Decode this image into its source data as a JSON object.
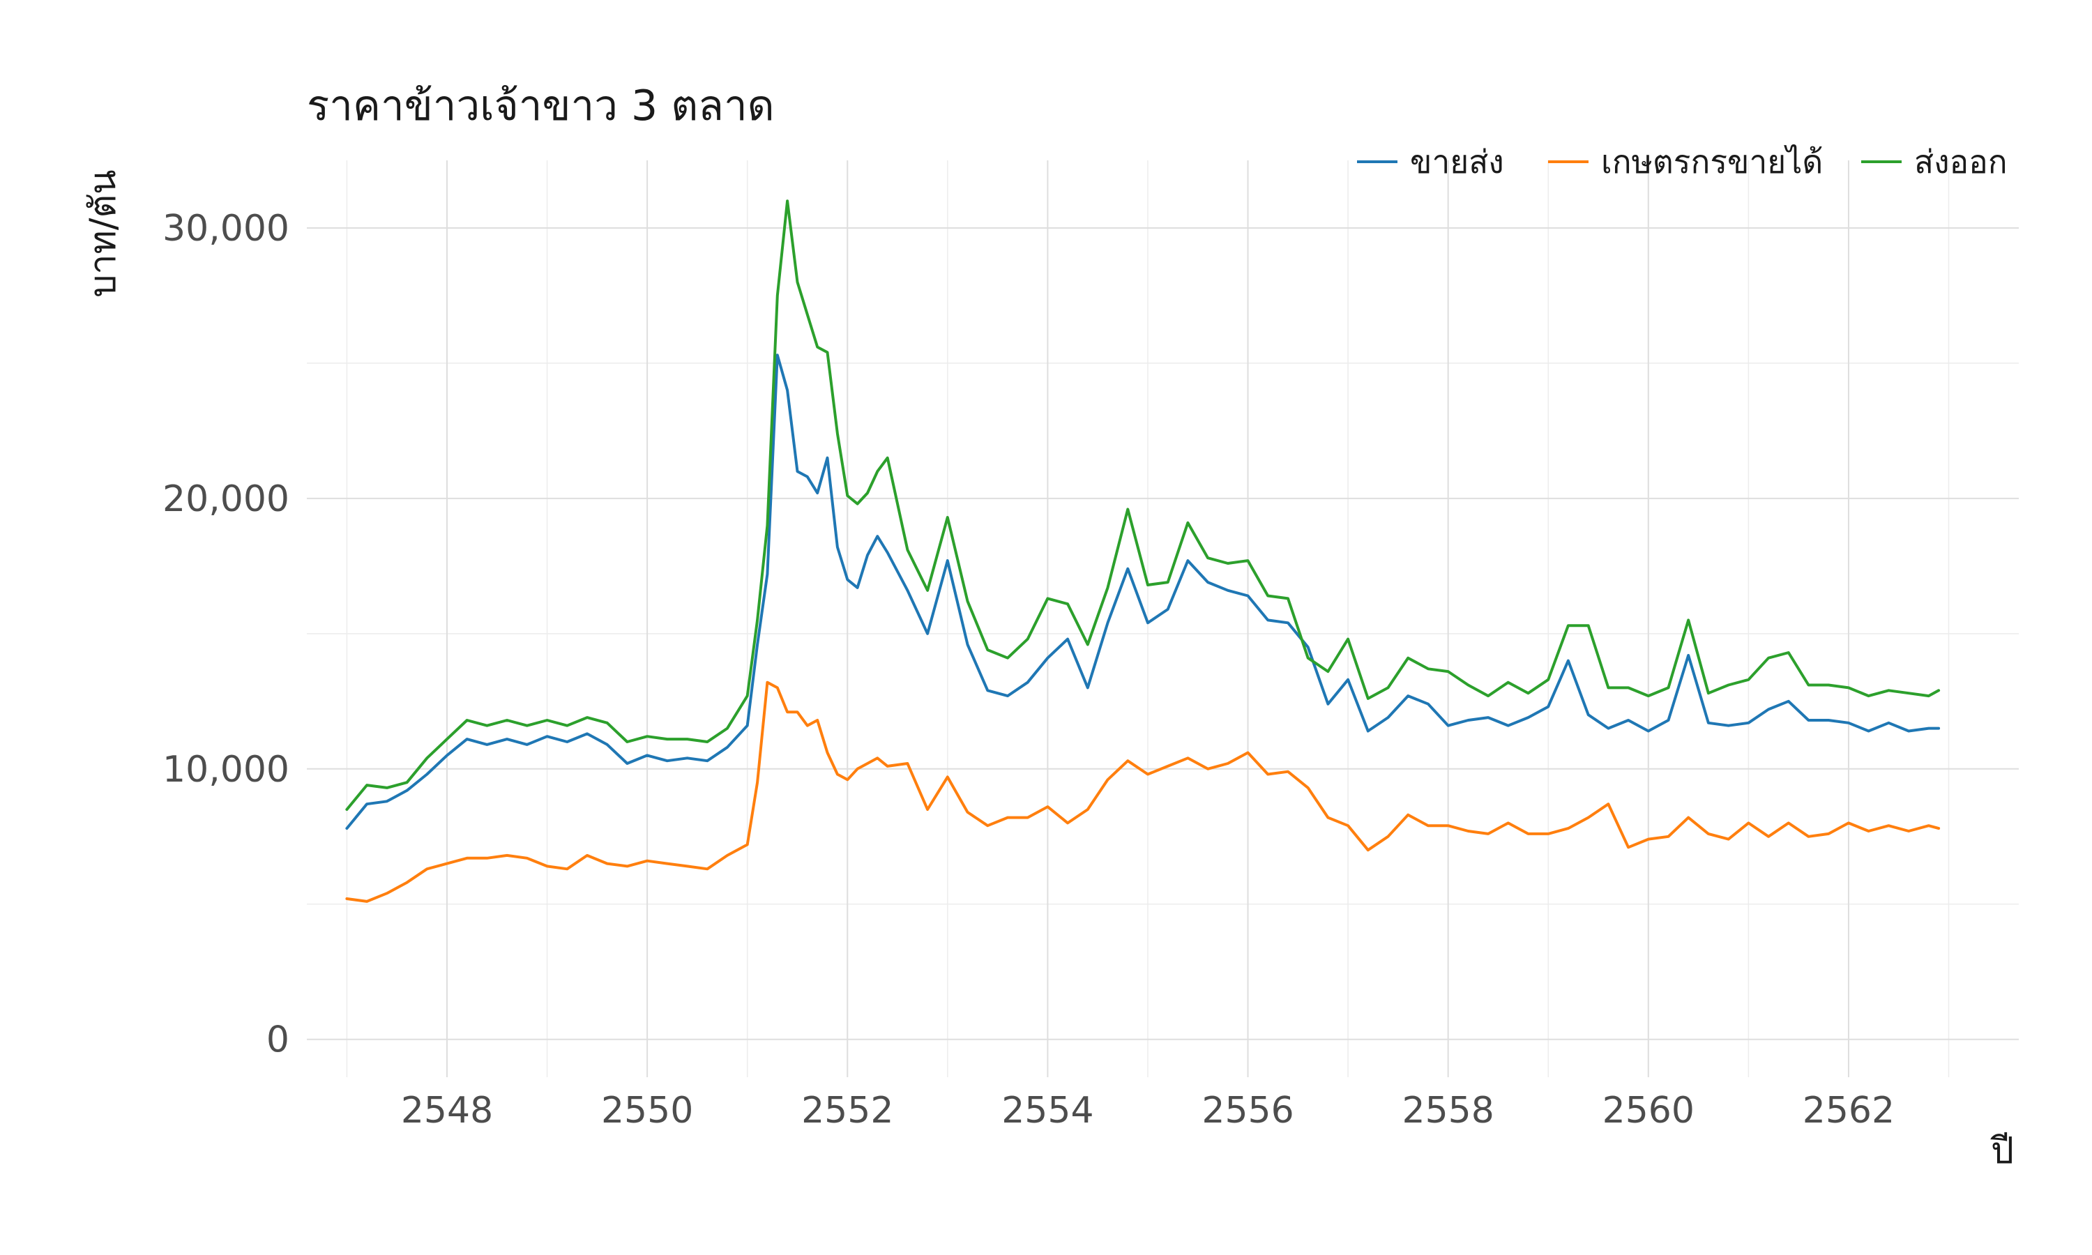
{
  "chart_data": {
    "type": "line",
    "title": "ราคาข้าวเจ้าขาว 3 ตลาด",
    "xlabel": "ปี",
    "ylabel": "บาท/ตัน",
    "xlim": [
      2546.6,
      2563.7
    ],
    "ylim": [
      -1400,
      32500
    ],
    "x_ticks": [
      2548,
      2550,
      2552,
      2554,
      2556,
      2558,
      2560,
      2562
    ],
    "x_tick_labels": [
      "2548",
      "2550",
      "2552",
      "2554",
      "2556",
      "2558",
      "2560",
      "2562"
    ],
    "y_ticks": [
      0,
      10000,
      20000,
      30000
    ],
    "y_tick_labels": [
      "0",
      "10,000",
      "20,000",
      "30,000"
    ],
    "grid": true,
    "legend_position": "top-right",
    "series": [
      {
        "name": "ขายส่ง",
        "color": "#1f77b4",
        "x": [
          2547.0,
          2547.2,
          2547.4,
          2547.6,
          2547.8,
          2548.0,
          2548.2,
          2548.4,
          2548.6,
          2548.8,
          2549.0,
          2549.2,
          2549.4,
          2549.6,
          2549.8,
          2550.0,
          2550.2,
          2550.4,
          2550.6,
          2550.8,
          2551.0,
          2551.1,
          2551.2,
          2551.3,
          2551.4,
          2551.5,
          2551.6,
          2551.7,
          2551.8,
          2551.9,
          2552.0,
          2552.1,
          2552.2,
          2552.3,
          2552.4,
          2552.6,
          2552.8,
          2553.0,
          2553.2,
          2553.4,
          2553.6,
          2553.8,
          2554.0,
          2554.2,
          2554.4,
          2554.6,
          2554.8,
          2555.0,
          2555.2,
          2555.4,
          2555.6,
          2555.8,
          2556.0,
          2556.2,
          2556.4,
          2556.6,
          2556.8,
          2557.0,
          2557.2,
          2557.4,
          2557.6,
          2557.8,
          2558.0,
          2558.2,
          2558.4,
          2558.6,
          2558.8,
          2559.0,
          2559.2,
          2559.4,
          2559.6,
          2559.8,
          2560.0,
          2560.2,
          2560.4,
          2560.6,
          2560.8,
          2561.0,
          2561.2,
          2561.4,
          2561.6,
          2561.8,
          2562.0,
          2562.2,
          2562.4,
          2562.6,
          2562.8,
          2562.9
        ],
        "values": [
          7800,
          8700,
          8800,
          9200,
          9800,
          10500,
          11100,
          10900,
          11100,
          10900,
          11200,
          11000,
          11300,
          10900,
          10200,
          10500,
          10300,
          10400,
          10300,
          10800,
          11600,
          14600,
          17200,
          25300,
          24000,
          21000,
          20800,
          20200,
          21500,
          18200,
          17000,
          16700,
          17900,
          18600,
          18000,
          16600,
          15000,
          17700,
          14600,
          12900,
          12700,
          13200,
          14100,
          14800,
          13000,
          15400,
          17400,
          15400,
          15900,
          17700,
          16900,
          16600,
          16400,
          15500,
          15400,
          14500,
          12400,
          13300,
          11400,
          11900,
          12700,
          12400,
          11600,
          11800,
          11900,
          11600,
          11900,
          12300,
          14000,
          12000,
          11500,
          11800,
          11400,
          11800,
          14200,
          11700,
          11600,
          11700,
          12200,
          12500,
          11800,
          11800,
          11700,
          11400,
          11700,
          11400,
          11500,
          11500
        ]
      },
      {
        "name": "เกษตรกรขายได้",
        "color": "#ff7f0e",
        "x": [
          2547.0,
          2547.2,
          2547.4,
          2547.6,
          2547.8,
          2548.0,
          2548.2,
          2548.4,
          2548.6,
          2548.8,
          2549.0,
          2549.2,
          2549.4,
          2549.6,
          2549.8,
          2550.0,
          2550.2,
          2550.4,
          2550.6,
          2550.8,
          2551.0,
          2551.1,
          2551.2,
          2551.3,
          2551.4,
          2551.5,
          2551.6,
          2551.7,
          2551.8,
          2551.9,
          2552.0,
          2552.1,
          2552.2,
          2552.3,
          2552.4,
          2552.6,
          2552.8,
          2553.0,
          2553.2,
          2553.4,
          2553.6,
          2553.8,
          2554.0,
          2554.2,
          2554.4,
          2554.6,
          2554.8,
          2555.0,
          2555.2,
          2555.4,
          2555.6,
          2555.8,
          2556.0,
          2556.2,
          2556.4,
          2556.6,
          2556.8,
          2557.0,
          2557.2,
          2557.4,
          2557.6,
          2557.8,
          2558.0,
          2558.2,
          2558.4,
          2558.6,
          2558.8,
          2559.0,
          2559.2,
          2559.4,
          2559.6,
          2559.8,
          2560.0,
          2560.2,
          2560.4,
          2560.6,
          2560.8,
          2561.0,
          2561.2,
          2561.4,
          2561.6,
          2561.8,
          2562.0,
          2562.2,
          2562.4,
          2562.6,
          2562.8,
          2562.9
        ],
        "values": [
          5200,
          5100,
          5400,
          5800,
          6300,
          6500,
          6700,
          6700,
          6800,
          6700,
          6400,
          6300,
          6800,
          6500,
          6400,
          6600,
          6500,
          6400,
          6300,
          6800,
          7200,
          9500,
          13200,
          13000,
          12100,
          12100,
          11600,
          11800,
          10600,
          9800,
          9600,
          10000,
          10200,
          10400,
          10100,
          10200,
          8500,
          9700,
          8400,
          7900,
          8200,
          8200,
          8600,
          8000,
          8500,
          9600,
          10300,
          9800,
          10100,
          10400,
          10000,
          10200,
          10600,
          9800,
          9900,
          9300,
          8200,
          7900,
          7000,
          7500,
          8300,
          7900,
          7900,
          7700,
          7600,
          8000,
          7600,
          7600,
          7800,
          8200,
          8700,
          7100,
          7400,
          7500,
          8200,
          7600,
          7400,
          8000,
          7500,
          8000,
          7500,
          7600,
          8000,
          7700,
          7900,
          7700,
          7900,
          7800
        ]
      },
      {
        "name": "ส่งออก",
        "color": "#2ca02c",
        "x": [
          2547.0,
          2547.2,
          2547.4,
          2547.6,
          2547.8,
          2548.0,
          2548.2,
          2548.4,
          2548.6,
          2548.8,
          2549.0,
          2549.2,
          2549.4,
          2549.6,
          2549.8,
          2550.0,
          2550.2,
          2550.4,
          2550.6,
          2550.8,
          2551.0,
          2551.1,
          2551.2,
          2551.3,
          2551.4,
          2551.5,
          2551.6,
          2551.7,
          2551.8,
          2551.9,
          2552.0,
          2552.1,
          2552.2,
          2552.3,
          2552.4,
          2552.6,
          2552.8,
          2553.0,
          2553.2,
          2553.4,
          2553.6,
          2553.8,
          2554.0,
          2554.2,
          2554.4,
          2554.6,
          2554.8,
          2555.0,
          2555.2,
          2555.4,
          2555.6,
          2555.8,
          2556.0,
          2556.2,
          2556.4,
          2556.6,
          2556.8,
          2557.0,
          2557.2,
          2557.4,
          2557.6,
          2557.8,
          2558.0,
          2558.2,
          2558.4,
          2558.6,
          2558.8,
          2559.0,
          2559.2,
          2559.4,
          2559.6,
          2559.8,
          2560.0,
          2560.2,
          2560.4,
          2560.6,
          2560.8,
          2561.0,
          2561.2,
          2561.4,
          2561.6,
          2561.8,
          2562.0,
          2562.2,
          2562.4,
          2562.6,
          2562.8,
          2562.9
        ],
        "values": [
          8500,
          9400,
          9300,
          9500,
          10400,
          11100,
          11800,
          11600,
          11800,
          11600,
          11800,
          11600,
          11900,
          11700,
          11000,
          11200,
          11100,
          11100,
          11000,
          11500,
          12700,
          15500,
          19000,
          27500,
          31000,
          28000,
          26800,
          25600,
          25400,
          22400,
          20100,
          19800,
          20200,
          21000,
          21500,
          18100,
          16600,
          19300,
          16200,
          14400,
          14100,
          14800,
          16300,
          16100,
          14600,
          16700,
          19600,
          16800,
          16900,
          19100,
          17800,
          17600,
          17700,
          16400,
          16300,
          14100,
          13600,
          14800,
          12600,
          13000,
          14100,
          13700,
          13600,
          13100,
          12700,
          13200,
          12800,
          13300,
          15300,
          15300,
          13000,
          13000,
          12700,
          13000,
          15500,
          12800,
          13100,
          13300,
          14100,
          14300,
          13100,
          13100,
          13000,
          12700,
          12900,
          12800,
          12700,
          12900
        ]
      }
    ]
  }
}
